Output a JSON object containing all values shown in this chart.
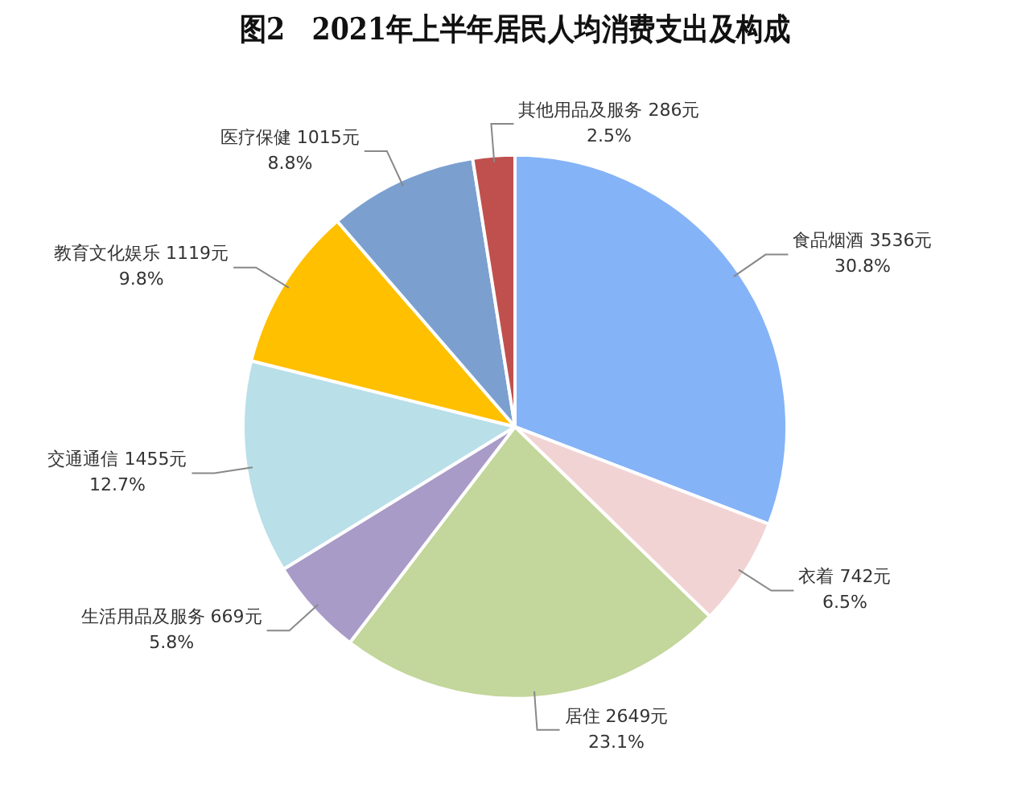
{
  "chart_data": {
    "type": "pie",
    "title": "图2　2021年上半年居民人均消费支出及构成",
    "categories": [
      "食品烟酒",
      "衣着",
      "居住",
      "生活用品及服务",
      "交通通信",
      "教育文化娱乐",
      "医疗保健",
      "其他用品及服务"
    ],
    "values": [
      3536,
      742,
      2649,
      669,
      1455,
      1119,
      1015,
      286
    ],
    "value_labels": [
      "3536元\n30.8%",
      "742元\n6.5%",
      "2649元\n23.1%",
      "669元\n5.8%",
      "1455元\n12.7%",
      "1119元\n9.8%",
      "1015元\n8.8%",
      "286元\n2.5%"
    ],
    "colors": [
      "#85b3f7",
      "#f2d3d3",
      "#c3d69b",
      "#a99bc7",
      "#b9dfe9",
      "#ffc000",
      "#7ba0cf",
      "#c0504d"
    ],
    "legend": false
  }
}
